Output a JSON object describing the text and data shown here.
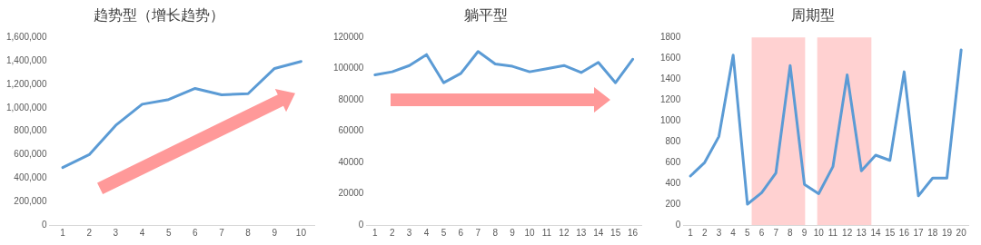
{
  "chart_data": [
    {
      "type": "line",
      "title": "趋势型（增长趋势）",
      "x": [
        1,
        2,
        3,
        4,
        5,
        6,
        7,
        8,
        9,
        10
      ],
      "xlim": [
        0.5,
        10.5
      ],
      "xticks": [
        1,
        2,
        3,
        4,
        5,
        6,
        7,
        8,
        9,
        10
      ],
      "series": [
        {
          "color": "#5b9bd5",
          "values": [
            490000,
            600000,
            850000,
            1030000,
            1070000,
            1165000,
            1110000,
            1120000,
            1335000,
            1395000
          ]
        }
      ],
      "ylim": [
        0,
        1600000
      ],
      "yticks": [
        {
          "value": 0,
          "label": "0"
        },
        {
          "value": 200000,
          "label": "200,000"
        },
        {
          "value": 400000,
          "label": "400,000"
        },
        {
          "value": 600000,
          "label": "600,000"
        },
        {
          "value": 800000,
          "label": "800,000"
        },
        {
          "value": 1000000,
          "label": "1,000,000"
        },
        {
          "value": 1200000,
          "label": "1,200,000"
        },
        {
          "value": 1400000,
          "label": "1,400,000"
        },
        {
          "value": 1600000,
          "label": "1,600,000"
        }
      ],
      "grid": false,
      "legend": false,
      "marker": "none",
      "line_style": "solid"
    },
    {
      "type": "line",
      "title": "躺平型",
      "x": [
        1,
        2,
        3,
        4,
        5,
        6,
        7,
        8,
        9,
        10,
        11,
        12,
        13,
        14,
        15,
        16
      ],
      "xlim": [
        0.5,
        16.5
      ],
      "xticks": [
        1,
        2,
        3,
        4,
        5,
        6,
        7,
        8,
        9,
        10,
        11,
        12,
        13,
        14,
        15,
        16
      ],
      "series": [
        {
          "color": "#5b9bd5",
          "values": [
            96000,
            98000,
            102000,
            109000,
            91000,
            97000,
            111000,
            103000,
            101500,
            98000,
            100000,
            102000,
            97500,
            104000,
            91000,
            106000
          ]
        }
      ],
      "ylim": [
        0,
        120000
      ],
      "yticks": [
        0,
        20000,
        40000,
        60000,
        80000,
        100000,
        120000
      ],
      "grid": false,
      "legend": false,
      "marker": "none",
      "line_style": "solid"
    },
    {
      "type": "line",
      "title": "周期型",
      "x": [
        1,
        2,
        3,
        4,
        5,
        6,
        7,
        8,
        9,
        10,
        11,
        12,
        13,
        14,
        15,
        16,
        17,
        18,
        19,
        20
      ],
      "xlim": [
        0.5,
        20.5
      ],
      "xticks": [
        1,
        2,
        3,
        4,
        5,
        6,
        7,
        8,
        9,
        10,
        11,
        12,
        13,
        14,
        15,
        16,
        17,
        18,
        19,
        20
      ],
      "series": [
        {
          "color": "#5b9bd5",
          "values": [
            470,
            600,
            850,
            1630,
            200,
            310,
            500,
            1530,
            390,
            300,
            560,
            1440,
            520,
            670,
            620,
            1470,
            280,
            450,
            450,
            1680
          ]
        }
      ],
      "ylim": [
        0,
        1800
      ],
      "yticks": [
        0,
        200,
        400,
        600,
        800,
        1000,
        1200,
        1400,
        1600,
        1800
      ],
      "bands": [
        {
          "axis": "x",
          "from": 5.3,
          "to": 9.05,
          "color": "#ff9999"
        },
        {
          "axis": "x",
          "from": 9.9,
          "to": 13.7,
          "color": "#ff9999"
        }
      ],
      "grid": false,
      "legend": false,
      "marker": "none",
      "line_style": "solid"
    }
  ]
}
